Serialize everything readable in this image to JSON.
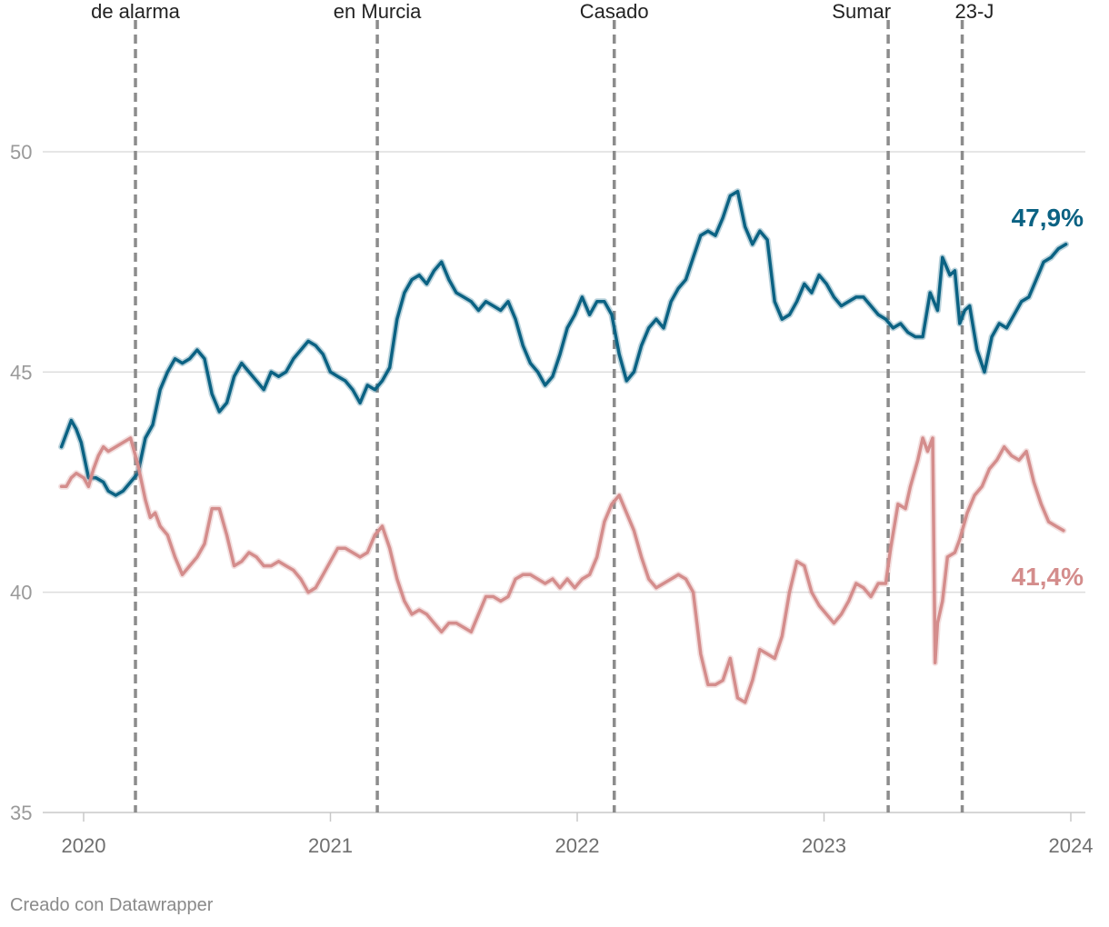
{
  "chart_data": {
    "type": "line",
    "title": "",
    "xlabel": "",
    "ylabel": "",
    "ylim": [
      35,
      50
    ],
    "xlim": [
      2019.9,
      2024.0
    ],
    "y_ticks": [
      35,
      40,
      45,
      50
    ],
    "y_tick_labels": [
      "35",
      "40",
      "45",
      "50"
    ],
    "x_ticks": [
      2020,
      2021,
      2022,
      2023,
      2024
    ],
    "x_tick_labels": [
      "2020",
      "2021",
      "2022",
      "2023",
      "2024"
    ],
    "grid": true,
    "legend": "none",
    "colors": {
      "series_a": "#0b6283",
      "series_b": "#d48d8c",
      "grid": "#dddddd",
      "event_line": "#8c8c8c"
    },
    "events": [
      {
        "x": 2020.21,
        "label": "de alarma"
      },
      {
        "x": 2021.19,
        "label": "en Murcia"
      },
      {
        "x": 2022.15,
        "label": "Casado"
      },
      {
        "x": 2023.26,
        "label": "Sumar"
      },
      {
        "x": 2023.56,
        "label": "23-J"
      }
    ],
    "series": [
      {
        "name": "series_a",
        "end_label": "47,9%",
        "points": [
          [
            2019.91,
            43.3
          ],
          [
            2019.93,
            43.6
          ],
          [
            2019.95,
            43.9
          ],
          [
            2019.97,
            43.7
          ],
          [
            2019.99,
            43.4
          ],
          [
            2020.02,
            42.6
          ],
          [
            2020.05,
            42.6
          ],
          [
            2020.08,
            42.5
          ],
          [
            2020.1,
            42.3
          ],
          [
            2020.13,
            42.2
          ],
          [
            2020.16,
            42.3
          ],
          [
            2020.19,
            42.5
          ],
          [
            2020.22,
            42.7
          ],
          [
            2020.25,
            43.5
          ],
          [
            2020.28,
            43.8
          ],
          [
            2020.31,
            44.6
          ],
          [
            2020.34,
            45.0
          ],
          [
            2020.37,
            45.3
          ],
          [
            2020.4,
            45.2
          ],
          [
            2020.43,
            45.3
          ],
          [
            2020.46,
            45.5
          ],
          [
            2020.49,
            45.3
          ],
          [
            2020.52,
            44.5
          ],
          [
            2020.55,
            44.1
          ],
          [
            2020.58,
            44.3
          ],
          [
            2020.61,
            44.9
          ],
          [
            2020.64,
            45.2
          ],
          [
            2020.67,
            45.0
          ],
          [
            2020.7,
            44.8
          ],
          [
            2020.73,
            44.6
          ],
          [
            2020.76,
            45.0
          ],
          [
            2020.79,
            44.9
          ],
          [
            2020.82,
            45.0
          ],
          [
            2020.85,
            45.3
          ],
          [
            2020.88,
            45.5
          ],
          [
            2020.91,
            45.7
          ],
          [
            2020.94,
            45.6
          ],
          [
            2020.97,
            45.4
          ],
          [
            2021.0,
            45.0
          ],
          [
            2021.03,
            44.9
          ],
          [
            2021.06,
            44.8
          ],
          [
            2021.09,
            44.6
          ],
          [
            2021.12,
            44.3
          ],
          [
            2021.15,
            44.7
          ],
          [
            2021.18,
            44.6
          ],
          [
            2021.21,
            44.8
          ],
          [
            2021.24,
            45.1
          ],
          [
            2021.27,
            46.2
          ],
          [
            2021.3,
            46.8
          ],
          [
            2021.33,
            47.1
          ],
          [
            2021.36,
            47.2
          ],
          [
            2021.39,
            47.0
          ],
          [
            2021.42,
            47.3
          ],
          [
            2021.45,
            47.5
          ],
          [
            2021.48,
            47.1
          ],
          [
            2021.51,
            46.8
          ],
          [
            2021.54,
            46.7
          ],
          [
            2021.57,
            46.6
          ],
          [
            2021.6,
            46.4
          ],
          [
            2021.63,
            46.6
          ],
          [
            2021.66,
            46.5
          ],
          [
            2021.69,
            46.4
          ],
          [
            2021.72,
            46.6
          ],
          [
            2021.75,
            46.2
          ],
          [
            2021.78,
            45.6
          ],
          [
            2021.81,
            45.2
          ],
          [
            2021.84,
            45.0
          ],
          [
            2021.87,
            44.7
          ],
          [
            2021.9,
            44.9
          ],
          [
            2021.93,
            45.4
          ],
          [
            2021.96,
            46.0
          ],
          [
            2021.99,
            46.3
          ],
          [
            2022.02,
            46.7
          ],
          [
            2022.05,
            46.3
          ],
          [
            2022.08,
            46.6
          ],
          [
            2022.11,
            46.6
          ],
          [
            2022.14,
            46.3
          ],
          [
            2022.17,
            45.4
          ],
          [
            2022.2,
            44.8
          ],
          [
            2022.23,
            45.0
          ],
          [
            2022.26,
            45.6
          ],
          [
            2022.29,
            46.0
          ],
          [
            2022.32,
            46.2
          ],
          [
            2022.35,
            46.0
          ],
          [
            2022.38,
            46.6
          ],
          [
            2022.41,
            46.9
          ],
          [
            2022.44,
            47.1
          ],
          [
            2022.47,
            47.6
          ],
          [
            2022.5,
            48.1
          ],
          [
            2022.53,
            48.2
          ],
          [
            2022.56,
            48.1
          ],
          [
            2022.59,
            48.5
          ],
          [
            2022.62,
            49.0
          ],
          [
            2022.65,
            49.1
          ],
          [
            2022.68,
            48.3
          ],
          [
            2022.71,
            47.9
          ],
          [
            2022.74,
            48.2
          ],
          [
            2022.77,
            48.0
          ],
          [
            2022.8,
            46.6
          ],
          [
            2022.83,
            46.2
          ],
          [
            2022.86,
            46.3
          ],
          [
            2022.89,
            46.6
          ],
          [
            2022.92,
            47.0
          ],
          [
            2022.95,
            46.8
          ],
          [
            2022.98,
            47.2
          ],
          [
            2023.01,
            47.0
          ],
          [
            2023.04,
            46.7
          ],
          [
            2023.07,
            46.5
          ],
          [
            2023.1,
            46.6
          ],
          [
            2023.13,
            46.7
          ],
          [
            2023.16,
            46.7
          ],
          [
            2023.19,
            46.5
          ],
          [
            2023.22,
            46.3
          ],
          [
            2023.25,
            46.2
          ],
          [
            2023.28,
            46.0
          ],
          [
            2023.31,
            46.1
          ],
          [
            2023.34,
            45.9
          ],
          [
            2023.37,
            45.8
          ],
          [
            2023.4,
            45.8
          ],
          [
            2023.43,
            46.8
          ],
          [
            2023.46,
            46.4
          ],
          [
            2023.48,
            47.6
          ],
          [
            2023.51,
            47.2
          ],
          [
            2023.53,
            47.3
          ],
          [
            2023.55,
            46.1
          ],
          [
            2023.57,
            46.4
          ],
          [
            2023.59,
            46.5
          ],
          [
            2023.62,
            45.5
          ],
          [
            2023.65,
            45.0
          ],
          [
            2023.68,
            45.8
          ],
          [
            2023.71,
            46.1
          ],
          [
            2023.74,
            46.0
          ],
          [
            2023.77,
            46.3
          ],
          [
            2023.8,
            46.6
          ],
          [
            2023.83,
            46.7
          ],
          [
            2023.86,
            47.1
          ],
          [
            2023.89,
            47.5
          ],
          [
            2023.92,
            47.6
          ],
          [
            2023.95,
            47.8
          ],
          [
            2023.98,
            47.9
          ]
        ]
      },
      {
        "name": "series_b",
        "end_label": "41,4%",
        "points": [
          [
            2019.91,
            42.4
          ],
          [
            2019.93,
            42.4
          ],
          [
            2019.95,
            42.6
          ],
          [
            2019.97,
            42.7
          ],
          [
            2020.0,
            42.6
          ],
          [
            2020.02,
            42.4
          ],
          [
            2020.04,
            42.8
          ],
          [
            2020.06,
            43.1
          ],
          [
            2020.08,
            43.3
          ],
          [
            2020.1,
            43.2
          ],
          [
            2020.13,
            43.3
          ],
          [
            2020.16,
            43.4
          ],
          [
            2020.19,
            43.5
          ],
          [
            2020.22,
            42.9
          ],
          [
            2020.25,
            42.1
          ],
          [
            2020.27,
            41.7
          ],
          [
            2020.29,
            41.8
          ],
          [
            2020.31,
            41.5
          ],
          [
            2020.34,
            41.3
          ],
          [
            2020.37,
            40.8
          ],
          [
            2020.4,
            40.4
          ],
          [
            2020.43,
            40.6
          ],
          [
            2020.46,
            40.8
          ],
          [
            2020.49,
            41.1
          ],
          [
            2020.52,
            41.9
          ],
          [
            2020.55,
            41.9
          ],
          [
            2020.58,
            41.3
          ],
          [
            2020.61,
            40.6
          ],
          [
            2020.64,
            40.7
          ],
          [
            2020.67,
            40.9
          ],
          [
            2020.7,
            40.8
          ],
          [
            2020.73,
            40.6
          ],
          [
            2020.76,
            40.6
          ],
          [
            2020.79,
            40.7
          ],
          [
            2020.82,
            40.6
          ],
          [
            2020.85,
            40.5
          ],
          [
            2020.88,
            40.3
          ],
          [
            2020.91,
            40.0
          ],
          [
            2020.94,
            40.1
          ],
          [
            2020.97,
            40.4
          ],
          [
            2021.0,
            40.7
          ],
          [
            2021.03,
            41.0
          ],
          [
            2021.06,
            41.0
          ],
          [
            2021.09,
            40.9
          ],
          [
            2021.12,
            40.8
          ],
          [
            2021.15,
            40.9
          ],
          [
            2021.18,
            41.3
          ],
          [
            2021.21,
            41.5
          ],
          [
            2021.24,
            41.0
          ],
          [
            2021.27,
            40.3
          ],
          [
            2021.3,
            39.8
          ],
          [
            2021.33,
            39.5
          ],
          [
            2021.36,
            39.6
          ],
          [
            2021.39,
            39.5
          ],
          [
            2021.42,
            39.3
          ],
          [
            2021.45,
            39.1
          ],
          [
            2021.48,
            39.3
          ],
          [
            2021.51,
            39.3
          ],
          [
            2021.54,
            39.2
          ],
          [
            2021.57,
            39.1
          ],
          [
            2021.6,
            39.5
          ],
          [
            2021.63,
            39.9
          ],
          [
            2021.66,
            39.9
          ],
          [
            2021.69,
            39.8
          ],
          [
            2021.72,
            39.9
          ],
          [
            2021.75,
            40.3
          ],
          [
            2021.78,
            40.4
          ],
          [
            2021.81,
            40.4
          ],
          [
            2021.84,
            40.3
          ],
          [
            2021.87,
            40.2
          ],
          [
            2021.9,
            40.3
          ],
          [
            2021.93,
            40.1
          ],
          [
            2021.96,
            40.3
          ],
          [
            2021.99,
            40.1
          ],
          [
            2022.02,
            40.3
          ],
          [
            2022.05,
            40.4
          ],
          [
            2022.08,
            40.8
          ],
          [
            2022.11,
            41.6
          ],
          [
            2022.14,
            42.0
          ],
          [
            2022.17,
            42.2
          ],
          [
            2022.2,
            41.8
          ],
          [
            2022.23,
            41.4
          ],
          [
            2022.26,
            40.8
          ],
          [
            2022.29,
            40.3
          ],
          [
            2022.32,
            40.1
          ],
          [
            2022.35,
            40.2
          ],
          [
            2022.38,
            40.3
          ],
          [
            2022.41,
            40.4
          ],
          [
            2022.44,
            40.3
          ],
          [
            2022.47,
            40.0
          ],
          [
            2022.5,
            38.6
          ],
          [
            2022.53,
            37.9
          ],
          [
            2022.56,
            37.9
          ],
          [
            2022.59,
            38.0
          ],
          [
            2022.62,
            38.5
          ],
          [
            2022.65,
            37.6
          ],
          [
            2022.68,
            37.5
          ],
          [
            2022.71,
            38.0
          ],
          [
            2022.74,
            38.7
          ],
          [
            2022.77,
            38.6
          ],
          [
            2022.8,
            38.5
          ],
          [
            2022.83,
            39.0
          ],
          [
            2022.86,
            40.0
          ],
          [
            2022.89,
            40.7
          ],
          [
            2022.92,
            40.6
          ],
          [
            2022.95,
            40.0
          ],
          [
            2022.98,
            39.7
          ],
          [
            2023.01,
            39.5
          ],
          [
            2023.04,
            39.3
          ],
          [
            2023.07,
            39.5
          ],
          [
            2023.1,
            39.8
          ],
          [
            2023.13,
            40.2
          ],
          [
            2023.16,
            40.1
          ],
          [
            2023.19,
            39.9
          ],
          [
            2023.22,
            40.2
          ],
          [
            2023.25,
            40.2
          ],
          [
            2023.27,
            41.0
          ],
          [
            2023.3,
            42.0
          ],
          [
            2023.33,
            41.9
          ],
          [
            2023.35,
            42.4
          ],
          [
            2023.38,
            43.0
          ],
          [
            2023.4,
            43.5
          ],
          [
            2023.42,
            43.2
          ],
          [
            2023.44,
            43.5
          ],
          [
            2023.45,
            38.4
          ],
          [
            2023.46,
            39.3
          ],
          [
            2023.48,
            39.8
          ],
          [
            2023.5,
            40.8
          ],
          [
            2023.53,
            40.9
          ],
          [
            2023.55,
            41.2
          ],
          [
            2023.58,
            41.8
          ],
          [
            2023.61,
            42.2
          ],
          [
            2023.64,
            42.4
          ],
          [
            2023.67,
            42.8
          ],
          [
            2023.7,
            43.0
          ],
          [
            2023.73,
            43.3
          ],
          [
            2023.76,
            43.1
          ],
          [
            2023.79,
            43.0
          ],
          [
            2023.82,
            43.2
          ],
          [
            2023.85,
            42.5
          ],
          [
            2023.88,
            42.0
          ],
          [
            2023.91,
            41.6
          ],
          [
            2023.94,
            41.5
          ],
          [
            2023.97,
            41.4
          ]
        ]
      }
    ]
  },
  "credit": "Creado con Datawrapper"
}
